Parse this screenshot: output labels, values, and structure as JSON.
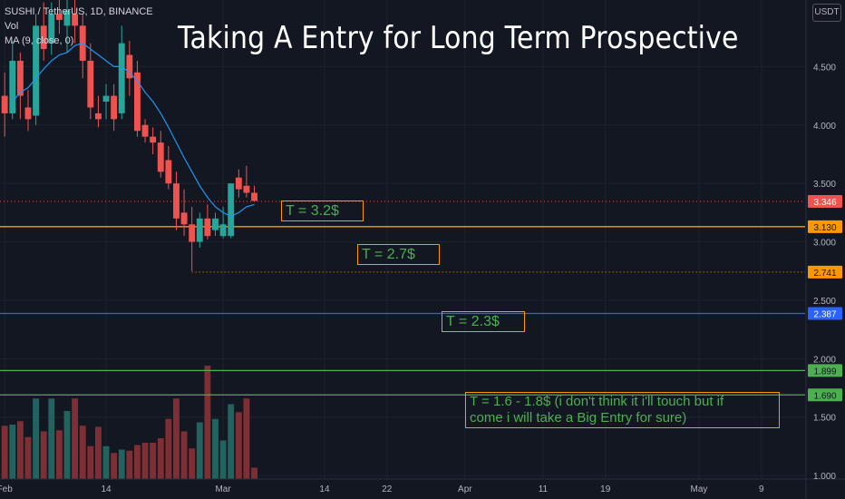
{
  "header": {
    "symbol": "SUSHI / TetherUS, 1D, BINANCE",
    "volume_label": "Vol",
    "ma_label": "MA (9, close, 0)",
    "currency_button": "USDT"
  },
  "title": "Taking A Entry for Long Term Prospective",
  "annotations": [
    {
      "text": "T = 3.2$"
    },
    {
      "text": "T = 2.7$"
    },
    {
      "text": "T = 2.3$"
    },
    {
      "text": "T = 1.6 - 1.8$ (i don't think it i'll touch but if",
      "text2": "come i will take a Big Entry for sure)"
    }
  ],
  "colors": {
    "background": "#131722",
    "up": "#26a69a",
    "down": "#ef5350",
    "ma": "#2196f3",
    "orange": "#ff9800",
    "blue": "#2962ff",
    "green": "#4caf50"
  },
  "chart_data": {
    "type": "candlestick",
    "symbol": "SUSHI / TetherUS",
    "interval": "1D",
    "exchange": "BINANCE",
    "y_axis_ticks": [
      1.0,
      1.5,
      2.0,
      2.5,
      3.0,
      3.5,
      4.0,
      4.5
    ],
    "y_tick_labels": [
      "1.000",
      "1.500",
      "2.000",
      "2.500",
      "3.000",
      "3.500",
      "4.000",
      "4.500"
    ],
    "ylim": [
      0.97,
      5.07
    ],
    "x_ticks": [
      {
        "label": "Feb",
        "day": 0
      },
      {
        "label": "14",
        "day": 13
      },
      {
        "label": "Mar",
        "day": 28
      },
      {
        "label": "14",
        "day": 41
      },
      {
        "label": "22",
        "day": 49
      },
      {
        "label": "Apr",
        "day": 59
      },
      {
        "label": "11",
        "day": 69
      },
      {
        "label": "19",
        "day": 77
      },
      {
        "label": "May",
        "day": 89
      },
      {
        "label": "9",
        "day": 97
      }
    ],
    "x_day_range": [
      -0.6,
      102.6
    ],
    "candles": [
      {
        "day": 0,
        "o": 4.25,
        "h": 4.45,
        "l": 3.9,
        "c": 4.1
      },
      {
        "day": 1,
        "o": 4.1,
        "h": 4.72,
        "l": 4.05,
        "c": 4.55
      },
      {
        "day": 2,
        "o": 4.55,
        "h": 4.62,
        "l": 4.05,
        "c": 4.25
      },
      {
        "day": 3,
        "o": 4.15,
        "h": 4.3,
        "l": 3.95,
        "c": 4.05
      },
      {
        "day": 4,
        "o": 4.08,
        "h": 4.95,
        "l": 4.0,
        "c": 4.85
      },
      {
        "day": 5,
        "o": 4.85,
        "h": 5.05,
        "l": 4.55,
        "c": 4.65
      },
      {
        "day": 6,
        "o": 4.7,
        "h": 5.05,
        "l": 4.6,
        "c": 4.95
      },
      {
        "day": 7,
        "o": 4.95,
        "h": 5.1,
        "l": 4.78,
        "c": 4.9
      },
      {
        "day": 8,
        "o": 4.85,
        "h": 5.08,
        "l": 4.62,
        "c": 4.98
      },
      {
        "day": 9,
        "o": 4.95,
        "h": 5.1,
        "l": 4.7,
        "c": 4.85
      },
      {
        "day": 10,
        "o": 4.85,
        "h": 4.95,
        "l": 4.4,
        "c": 4.55
      },
      {
        "day": 11,
        "o": 4.55,
        "h": 4.7,
        "l": 4.05,
        "c": 4.15
      },
      {
        "day": 12,
        "o": 4.1,
        "h": 4.25,
        "l": 3.98,
        "c": 4.05
      },
      {
        "day": 13,
        "o": 4.2,
        "h": 4.35,
        "l": 4.05,
        "c": 4.25
      },
      {
        "day": 14,
        "o": 4.25,
        "h": 4.35,
        "l": 3.95,
        "c": 4.05
      },
      {
        "day": 15,
        "o": 4.1,
        "h": 4.85,
        "l": 4.05,
        "c": 4.7
      },
      {
        "day": 16,
        "o": 4.6,
        "h": 4.72,
        "l": 4.25,
        "c": 4.4
      },
      {
        "day": 17,
        "o": 4.45,
        "h": 4.55,
        "l": 3.9,
        "c": 3.95
      },
      {
        "day": 18,
        "o": 4.0,
        "h": 4.05,
        "l": 3.85,
        "c": 3.9
      },
      {
        "day": 19,
        "o": 3.9,
        "h": 3.98,
        "l": 3.75,
        "c": 3.85
      },
      {
        "day": 20,
        "o": 3.85,
        "h": 3.95,
        "l": 3.55,
        "c": 3.6
      },
      {
        "day": 21,
        "o": 3.7,
        "h": 3.82,
        "l": 3.45,
        "c": 3.5
      },
      {
        "day": 22,
        "o": 3.5,
        "h": 3.6,
        "l": 3.1,
        "c": 3.2
      },
      {
        "day": 23,
        "o": 3.25,
        "h": 3.45,
        "l": 3.05,
        "c": 3.15
      },
      {
        "day": 24,
        "o": 3.15,
        "h": 3.3,
        "l": 2.75,
        "c": 3.0
      },
      {
        "day": 25,
        "o": 3.0,
        "h": 3.25,
        "l": 2.95,
        "c": 3.2
      },
      {
        "day": 26,
        "o": 3.2,
        "h": 3.32,
        "l": 3.02,
        "c": 3.05
      },
      {
        "day": 27,
        "o": 3.1,
        "h": 3.25,
        "l": 3.05,
        "c": 3.2
      },
      {
        "day": 28,
        "o": 3.05,
        "h": 3.3,
        "l": 3.03,
        "c": 3.15
      },
      {
        "day": 29,
        "o": 3.05,
        "h": 3.5,
        "l": 3.03,
        "c": 3.5
      },
      {
        "day": 30,
        "o": 3.55,
        "h": 3.62,
        "l": 3.38,
        "c": 3.45
      },
      {
        "day": 31,
        "o": 3.48,
        "h": 3.65,
        "l": 3.38,
        "c": 3.42
      },
      {
        "day": 32,
        "o": 3.42,
        "h": 3.48,
        "l": 3.35,
        "c": 3.35
      }
    ],
    "ma": [
      {
        "day": 1,
        "v": 4.2
      },
      {
        "day": 2,
        "v": 4.28
      },
      {
        "day": 3,
        "v": 4.32
      },
      {
        "day": 4,
        "v": 4.4
      },
      {
        "day": 5,
        "v": 4.48
      },
      {
        "day": 6,
        "v": 4.55
      },
      {
        "day": 7,
        "v": 4.6
      },
      {
        "day": 8,
        "v": 4.62
      },
      {
        "day": 9,
        "v": 4.68
      },
      {
        "day": 10,
        "v": 4.7
      },
      {
        "day": 11,
        "v": 4.65
      },
      {
        "day": 12,
        "v": 4.6
      },
      {
        "day": 13,
        "v": 4.55
      },
      {
        "day": 14,
        "v": 4.5
      },
      {
        "day": 15,
        "v": 4.5
      },
      {
        "day": 16,
        "v": 4.45
      },
      {
        "day": 17,
        "v": 4.38
      },
      {
        "day": 18,
        "v": 4.28
      },
      {
        "day": 19,
        "v": 4.2
      },
      {
        "day": 20,
        "v": 4.1
      },
      {
        "day": 21,
        "v": 3.98
      },
      {
        "day": 22,
        "v": 3.85
      },
      {
        "day": 23,
        "v": 3.72
      },
      {
        "day": 24,
        "v": 3.6
      },
      {
        "day": 25,
        "v": 3.48
      },
      {
        "day": 26,
        "v": 3.38
      },
      {
        "day": 27,
        "v": 3.3
      },
      {
        "day": 28,
        "v": 3.25
      },
      {
        "day": 29,
        "v": 3.22
      },
      {
        "day": 30,
        "v": 3.25
      },
      {
        "day": 31,
        "v": 3.3
      },
      {
        "day": 32,
        "v": 3.32
      }
    ],
    "volume": [
      0.47,
      0.48,
      0.51,
      0.37,
      0.71,
      0.42,
      0.71,
      0.43,
      0.6,
      0.71,
      0.47,
      0.29,
      0.46,
      0.29,
      0.23,
      0.26,
      0.25,
      0.3,
      0.32,
      0.32,
      0.36,
      0.53,
      0.71,
      0.42,
      0.27,
      0.5,
      1.0,
      0.53,
      0.34,
      0.66,
      0.59,
      0.71,
      0.1
    ],
    "volume_max_px": 125,
    "levels": [
      {
        "price": 3.346,
        "label": "3.346",
        "color": "#ef5350",
        "style": "dotted",
        "from_day": -0.6
      },
      {
        "price": 3.13,
        "label": "3.130",
        "color": "#ff9800",
        "style": "solid",
        "from_day": -0.6
      },
      {
        "price": 2.741,
        "label": "2.741",
        "color": "#ff9800",
        "style": "dotted",
        "from_day": 24
      },
      {
        "price": 2.387,
        "label": "2.387",
        "color": "#2962ff",
        "style": "solid",
        "from_day": -0.6
      },
      {
        "price": 1.899,
        "label": "1.899",
        "color": "#4caf50",
        "style": "solid",
        "from_day": -0.6
      },
      {
        "price": 1.69,
        "label": "1.690",
        "color": "#4caf50",
        "style": "solid",
        "from_day": -0.6
      }
    ]
  }
}
